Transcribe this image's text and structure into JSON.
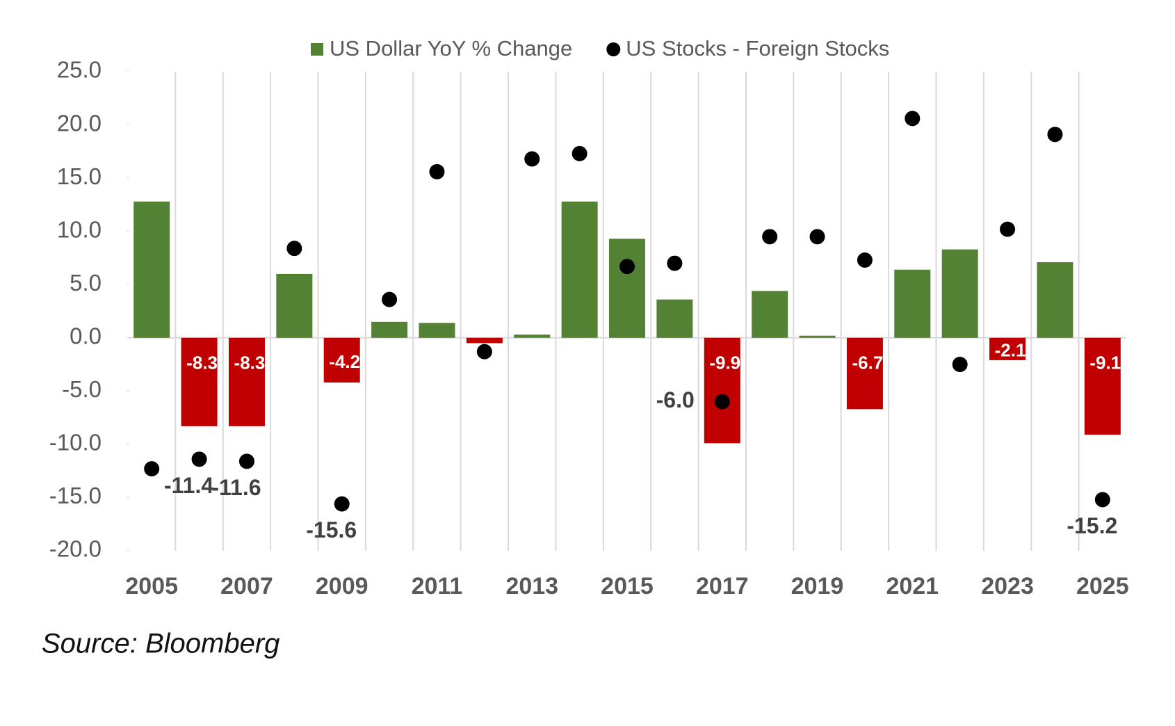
{
  "chart_data": {
    "type": "bar",
    "categories": [
      "2005",
      null,
      "2007",
      null,
      "2009",
      null,
      "2011",
      null,
      "2013",
      null,
      "2015",
      null,
      "2017",
      null,
      "2019",
      null,
      "2021",
      null,
      "2023",
      null,
      "2025"
    ],
    "series": [
      {
        "name": "US Dollar YoY % Change",
        "type": "bar",
        "color": "#548235",
        "negative_color": "#c00000",
        "values": [
          12.8,
          -8.3,
          -8.3,
          6.0,
          -4.2,
          1.5,
          1.4,
          -0.5,
          0.3,
          12.8,
          9.3,
          3.6,
          -9.9,
          4.4,
          0.2,
          -6.7,
          6.4,
          8.3,
          -2.1,
          7.1,
          -9.1
        ],
        "value_labels": [
          null,
          "-8.3",
          "-8.3",
          null,
          "-4.2",
          null,
          null,
          null,
          null,
          null,
          null,
          null,
          "-9.9",
          null,
          null,
          "-6.7",
          null,
          null,
          "-2.1",
          null,
          "-9.1"
        ]
      },
      {
        "name": "US Stocks - Foreign Stocks",
        "type": "scatter",
        "color": "#000000",
        "values": [
          -12.3,
          -11.4,
          -11.6,
          8.4,
          -15.6,
          3.6,
          15.6,
          -1.3,
          16.8,
          17.3,
          6.7,
          7.0,
          -6.0,
          9.5,
          9.5,
          7.3,
          20.6,
          -2.5,
          10.2,
          19.1,
          -15.2
        ],
        "value_labels": [
          null,
          "-11.4",
          "-11.6",
          null,
          "-15.6",
          null,
          null,
          null,
          null,
          null,
          null,
          null,
          "-6.0",
          null,
          null,
          null,
          null,
          null,
          null,
          null,
          "-15.2"
        ]
      }
    ],
    "ylim": [
      -20,
      25
    ],
    "yticks": [
      {
        "value": -20,
        "label": "-20.0"
      },
      {
        "value": -15,
        "label": "-15.0"
      },
      {
        "value": -10,
        "label": "-10.0"
      },
      {
        "value": -5,
        "label": "-5.0"
      },
      {
        "value": 0,
        "label": "0.0"
      },
      {
        "value": 5,
        "label": "5.0"
      },
      {
        "value": 10,
        "label": "10.0"
      },
      {
        "value": 15,
        "label": "15.0"
      },
      {
        "value": 20,
        "label": "20.0"
      },
      {
        "value": 25,
        "label": "25.0"
      }
    ],
    "grid": true,
    "legend": "top",
    "source": "Source: Bloomberg"
  }
}
